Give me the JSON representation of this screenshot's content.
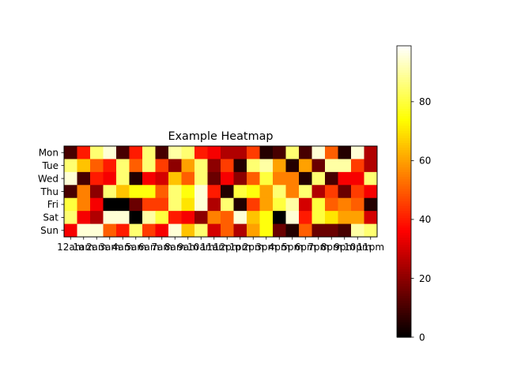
{
  "chart_data": {
    "type": "heatmap",
    "title": "Example Heatmap",
    "xlabel": "",
    "ylabel": "",
    "colormap": "hot",
    "vmin": 0,
    "vmax": 99,
    "grid": false,
    "legend": "colorbar-right",
    "x_categories": [
      "12am",
      "1am",
      "2am",
      "3am",
      "4am",
      "5am",
      "6am",
      "7am",
      "8am",
      "9am",
      "10am",
      "11am",
      "12pm",
      "1pm",
      "2pm",
      "3pm",
      "4pm",
      "5pm",
      "6pm",
      "7pm",
      "8pm",
      "9pm",
      "10pm",
      "11pm"
    ],
    "y_categories": [
      "Mon",
      "Tue",
      "Wed",
      "Thu",
      "Fri",
      "Sat",
      "Sun"
    ],
    "colorbar_ticks": [
      0,
      20,
      40,
      60,
      80
    ],
    "colorbar_tick_labels": [
      "0",
      "20",
      "40",
      "60",
      "80"
    ],
    "values": [
      [
        10,
        40,
        85,
        95,
        10,
        40,
        85,
        10,
        90,
        85,
        40,
        35,
        25,
        25,
        45,
        5,
        10,
        85,
        10,
        95,
        50,
        5,
        95,
        25
      ],
      [
        85,
        65,
        50,
        40,
        85,
        50,
        85,
        45,
        20,
        60,
        85,
        20,
        45,
        5,
        85,
        90,
        60,
        5,
        60,
        15,
        90,
        90,
        45,
        25
      ],
      [
        95,
        10,
        40,
        35,
        85,
        5,
        35,
        30,
        65,
        50,
        85,
        15,
        35,
        20,
        50,
        80,
        55,
        55,
        5,
        85,
        10,
        35,
        35,
        85
      ],
      [
        10,
        55,
        20,
        85,
        65,
        75,
        75,
        50,
        85,
        75,
        95,
        40,
        5,
        80,
        75,
        60,
        85,
        55,
        85,
        25,
        45,
        15,
        45,
        35
      ],
      [
        80,
        55,
        35,
        0,
        0,
        15,
        45,
        45,
        85,
        70,
        95,
        25,
        85,
        5,
        45,
        60,
        80,
        90,
        30,
        80,
        50,
        55,
        50,
        5
      ],
      [
        85,
        35,
        25,
        95,
        95,
        0,
        90,
        80,
        40,
        35,
        20,
        55,
        50,
        95,
        65,
        75,
        0,
        95,
        40,
        80,
        70,
        60,
        60,
        30
      ],
      [
        35,
        95,
        95,
        50,
        40,
        85,
        45,
        35,
        95,
        65,
        85,
        30,
        50,
        25,
        60,
        75,
        15,
        5,
        50,
        15,
        15,
        10,
        90,
        85
      ]
    ]
  }
}
